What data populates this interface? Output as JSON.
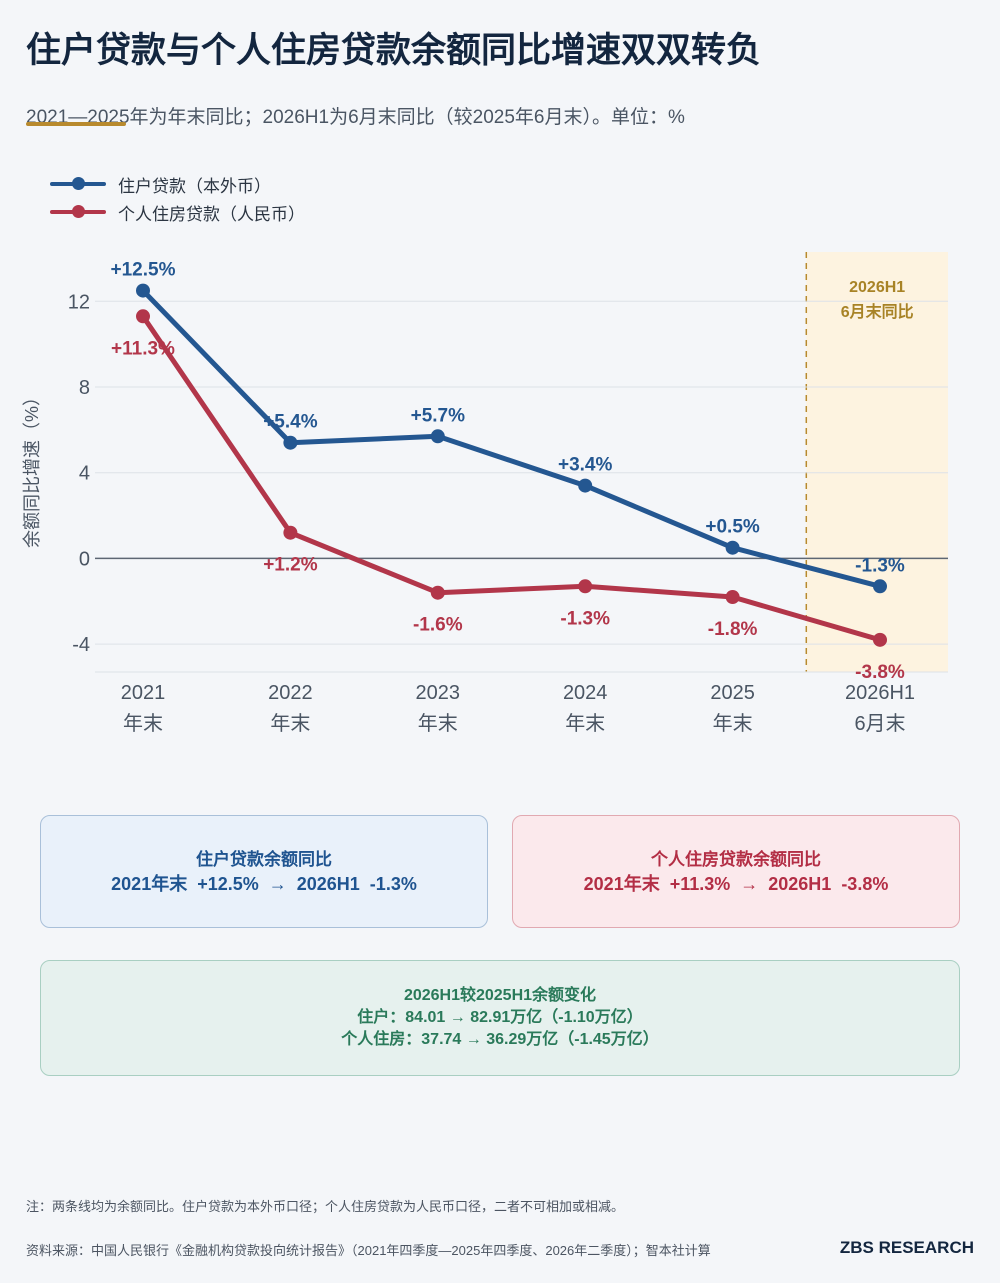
{
  "header": {
    "title": "住户贷款与个人住房贷款余额同比增速双双转负",
    "subtitle": "2021—2025年为年末同比；2026H1为6月末同比（较2025年6月末）。单位：%"
  },
  "colors": {
    "blue": "#245791",
    "red": "#b2364a",
    "highlight_bg": "#fdf3e0",
    "highlight_text": "#a88326"
  },
  "chart_data": {
    "type": "line",
    "categories": [
      "2021\n年末",
      "2022\n年末",
      "2023\n年末",
      "2024\n年末",
      "2025\n年末",
      "2026H1\n6月末"
    ],
    "ylabel": "余额同比增速（%）",
    "yticks": [
      12,
      8,
      4,
      0,
      -4
    ],
    "ylim": [
      -5.3,
      14.3
    ],
    "grid": true,
    "legend": "top-left",
    "highlight": {
      "category": "2026H1",
      "label_line1": "2026H1",
      "label_line2": "6月末同比"
    },
    "series": [
      {
        "name": "住户贷款（本外币）",
        "color": "#245791",
        "values": [
          12.5,
          5.4,
          5.7,
          3.4,
          0.5,
          -1.3
        ],
        "labels": [
          "+12.5%",
          "+5.4%",
          "+5.7%",
          "+3.4%",
          "+0.5%",
          "-1.3%"
        ]
      },
      {
        "name": "个人住房贷款（人民币）",
        "color": "#b2364a",
        "values": [
          11.3,
          1.2,
          -1.6,
          -1.3,
          -1.8,
          -3.8
        ],
        "labels": [
          "+11.3%",
          "+1.2%",
          "-1.6%",
          "-1.3%",
          "-1.8%",
          "-3.8%"
        ]
      }
    ]
  },
  "cards": {
    "household": {
      "title": "住户贷款余额同比",
      "value": "2021年末  +12.5%  →  2026H1  -1.3%"
    },
    "mortgage": {
      "title": "个人住房贷款余额同比",
      "value": "2021年末  +11.3%  →  2026H1  -3.8%"
    },
    "change": {
      "title": "2026H1较2025H1余额变化",
      "line1": "住户：84.01 → 82.91万亿（-1.10万亿）",
      "line2": "个人住房：37.74 → 36.29万亿（-1.45万亿）"
    }
  },
  "footer": {
    "note": "注：两条线均为余额同比。住户贷款为本外币口径；个人住房贷款为人民币口径，二者不可相加或相减。",
    "source": "资料来源：中国人民银行《金融机构贷款投向统计报告》（2021年四季度—2025年四季度、2026年二季度）；智本社计算",
    "brand": "ZBS RESEARCH"
  }
}
